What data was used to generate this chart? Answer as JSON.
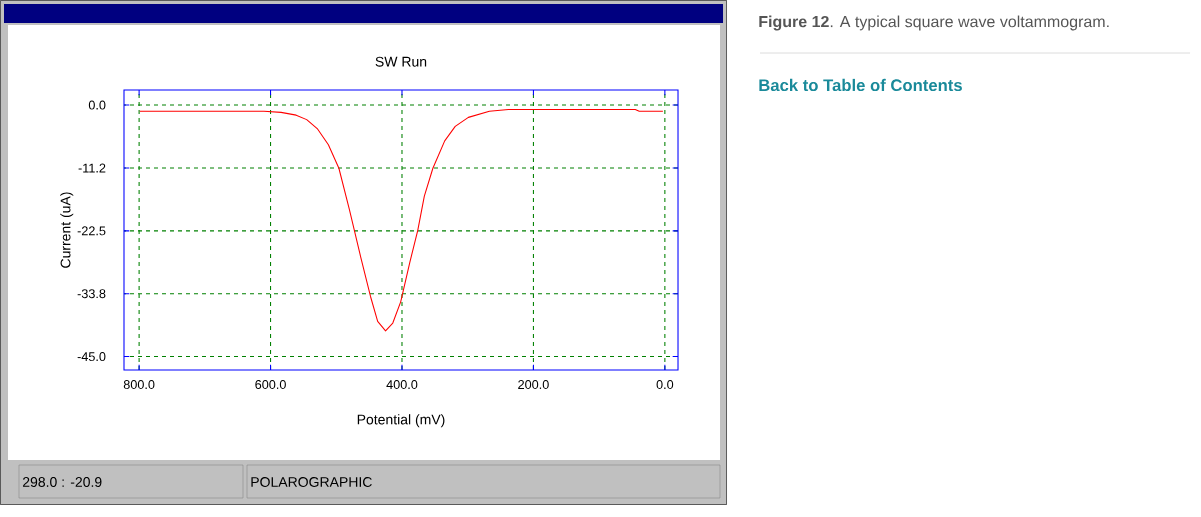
{
  "chart_data": {
    "type": "line",
    "title": "SW Run",
    "xlabel": "Potential (mV)",
    "ylabel": "Current (uA)",
    "x": [
      799,
      788,
      610,
      584,
      561,
      545,
      529,
      512,
      496,
      480,
      463,
      448,
      437,
      425,
      414,
      402,
      388,
      376,
      366,
      353,
      335,
      319,
      299,
      267,
      238,
      45,
      39,
      3
    ],
    "series": [
      {
        "color": "#ff0000",
        "values": [
          -1.1,
          -1.1,
          -1.1,
          -1.3,
          -1.8,
          -2.6,
          -4.2,
          -7.1,
          -11.3,
          -18.7,
          -27.1,
          -34.2,
          -38.7,
          -40.4,
          -39.0,
          -35.2,
          -28.1,
          -22.4,
          -16.3,
          -11.3,
          -6.4,
          -3.8,
          -2.2,
          -1.1,
          -0.8,
          -0.8,
          -1.1,
          -1.1
        ]
      }
    ],
    "xlim": [
      823,
      -20
    ],
    "ylim": [
      -47.4,
      2.7
    ],
    "xticks": [
      {
        "value": 800,
        "label": "800.0"
      },
      {
        "value": 600,
        "label": "600.0"
      },
      {
        "value": 400,
        "label": "400.0"
      },
      {
        "value": 200,
        "label": "200.0"
      },
      {
        "value": 0,
        "label": "0.0"
      }
    ],
    "yticks": [
      {
        "value": 0,
        "label": "0.0"
      },
      {
        "value": -11.25,
        "label": "-11.2"
      },
      {
        "value": -22.5,
        "label": "-22.5"
      },
      {
        "value": -33.75,
        "label": "-33.8"
      },
      {
        "value": -45,
        "label": "-45.0"
      }
    ],
    "grid": true,
    "marker": "none",
    "line_style": "solid",
    "annotations": [
      "298.0 : -20.9",
      "POLAROGRAPHIC",
      "**Figure 12**. A typical square wave voltammogram.",
      "Back to Table of Contents"
    ]
  }
}
